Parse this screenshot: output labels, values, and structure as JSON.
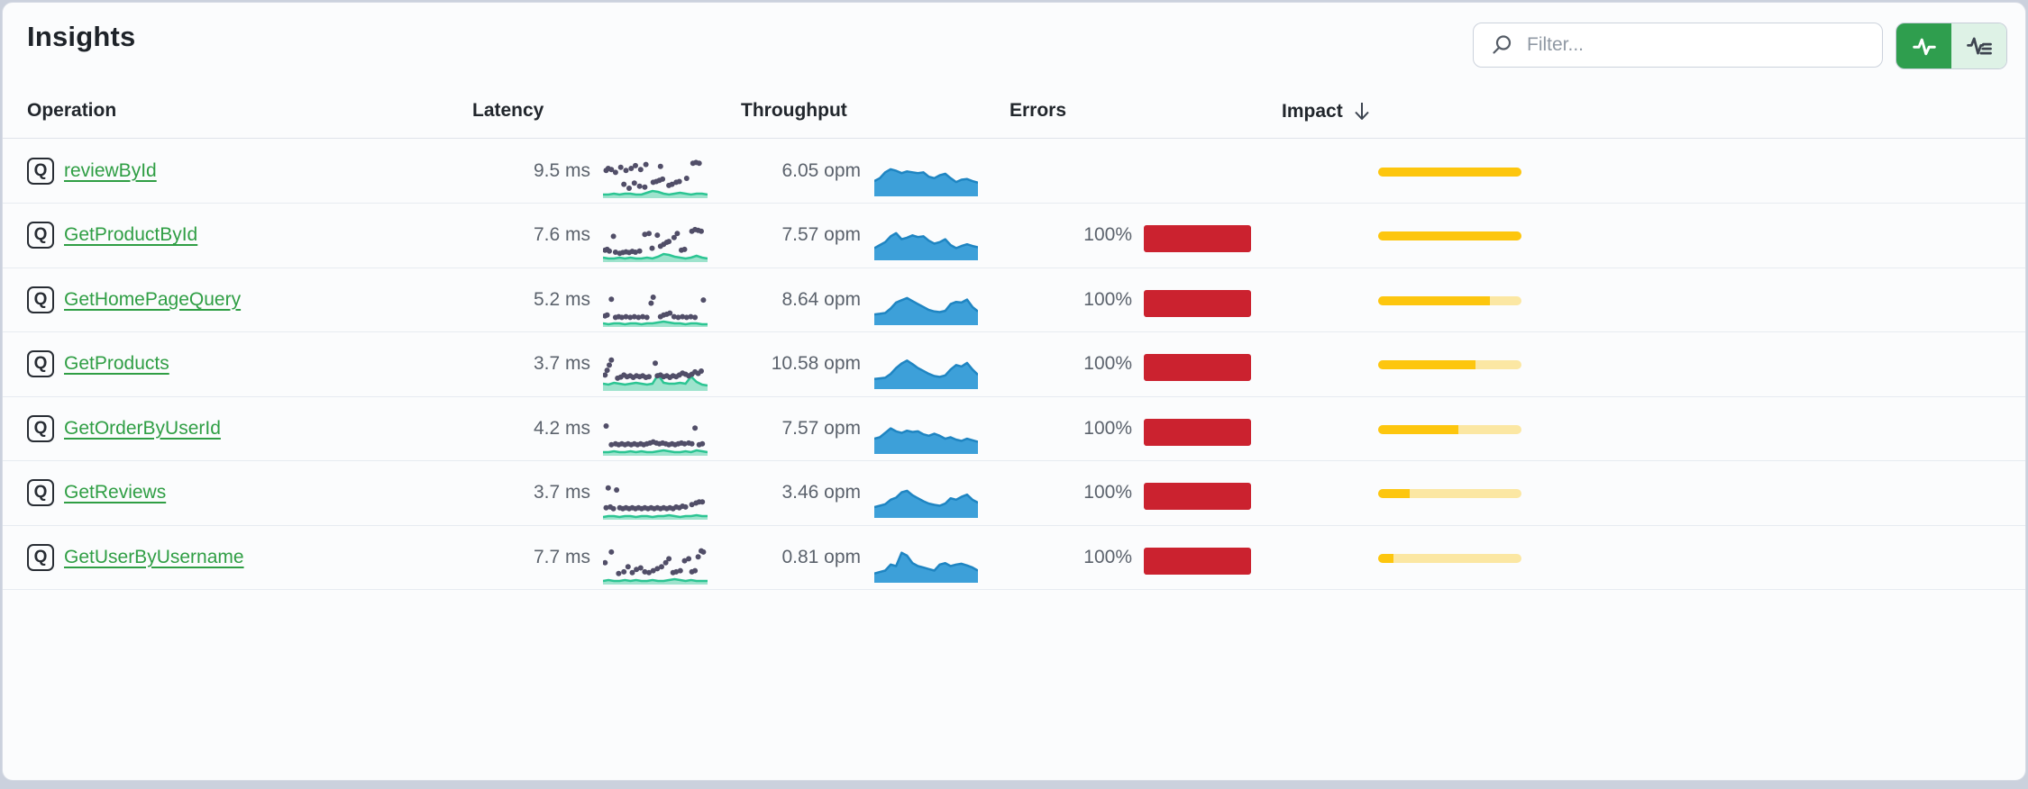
{
  "header": {
    "title": "Insights",
    "filter_placeholder": "Filter...",
    "view_modes": [
      {
        "name": "metrics-view",
        "active": true
      },
      {
        "name": "traces-view",
        "active": false
      }
    ]
  },
  "colors": {
    "accent_green": "#2f9e4e",
    "accent_green_light": "#def2e6",
    "link_green": "#2f9e44",
    "error_red": "#cb222f",
    "impact_gold": "#fdc60e",
    "impact_gold_pale": "#fbe7a3",
    "throughput_blue_fill": "#3da0d9",
    "throughput_blue_stroke": "#1f85c2",
    "latency_dot_purple": "#514e68",
    "latency_teal": "#2cc593"
  },
  "table": {
    "columns": [
      {
        "label": "Operation"
      },
      {
        "label": "Latency"
      },
      {
        "label": "Throughput"
      },
      {
        "label": "Errors"
      },
      {
        "label": "Impact",
        "sort": "desc"
      }
    ],
    "rows": [
      {
        "type_icon": "Q",
        "operation": "reviewById",
        "latency": "9.5 ms",
        "throughput": "6.05 opm",
        "errors": "",
        "has_error_bar": false,
        "impact_pct": 100,
        "latency_scatter": [
          [
            3,
            30
          ],
          [
            5,
            25
          ],
          [
            8,
            28
          ],
          [
            12,
            35
          ],
          [
            17,
            22
          ],
          [
            22,
            30
          ],
          [
            27,
            25
          ],
          [
            31,
            18
          ],
          [
            36,
            28
          ],
          [
            41,
            15
          ],
          [
            55,
            20
          ],
          [
            86,
            12
          ],
          [
            89,
            10
          ],
          [
            92,
            12
          ],
          [
            20,
            65
          ],
          [
            25,
            75
          ],
          [
            30,
            62
          ],
          [
            35,
            70
          ],
          [
            40,
            72
          ],
          [
            48,
            60
          ],
          [
            51,
            58
          ],
          [
            54,
            55
          ],
          [
            57,
            52
          ],
          [
            63,
            68
          ],
          [
            66,
            65
          ],
          [
            70,
            60
          ],
          [
            73,
            58
          ],
          [
            80,
            50
          ]
        ],
        "latency_baseline": [
          4,
          4,
          5,
          4,
          5,
          5,
          4,
          4,
          6,
          8,
          7,
          5,
          4,
          5,
          6,
          5,
          4,
          5,
          5,
          4
        ],
        "throughput_area": [
          0.45,
          0.55,
          0.75,
          0.85,
          0.8,
          0.72,
          0.78,
          0.75,
          0.72,
          0.75,
          0.6,
          0.55,
          0.65,
          0.7,
          0.55,
          0.42,
          0.5,
          0.52,
          0.45,
          0.4
        ]
      },
      {
        "type_icon": "Q",
        "operation": "GetProductById",
        "latency": "7.6 ms",
        "throughput": "7.57 opm",
        "errors": "100%",
        "has_error_bar": true,
        "impact_pct": 100,
        "latency_scatter": [
          [
            2,
            70
          ],
          [
            4,
            68
          ],
          [
            6,
            72
          ],
          [
            10,
            35
          ],
          [
            12,
            75
          ],
          [
            16,
            78
          ],
          [
            19,
            76
          ],
          [
            22,
            74
          ],
          [
            25,
            76
          ],
          [
            28,
            73
          ],
          [
            31,
            75
          ],
          [
            35,
            72
          ],
          [
            40,
            30
          ],
          [
            44,
            28
          ],
          [
            47,
            65
          ],
          [
            52,
            32
          ],
          [
            55,
            60
          ],
          [
            58,
            55
          ],
          [
            61,
            50
          ],
          [
            63,
            48
          ],
          [
            68,
            38
          ],
          [
            71,
            28
          ],
          [
            75,
            70
          ],
          [
            78,
            68
          ],
          [
            85,
            22
          ],
          [
            88,
            18
          ],
          [
            91,
            20
          ],
          [
            94,
            22
          ]
        ],
        "latency_baseline": [
          5,
          4,
          4,
          5,
          4,
          5,
          4,
          4,
          5,
          4,
          6,
          9,
          8,
          6,
          5,
          4,
          5,
          7,
          5,
          4
        ],
        "throughput_area": [
          0.35,
          0.45,
          0.55,
          0.75,
          0.85,
          0.65,
          0.7,
          0.78,
          0.72,
          0.75,
          0.6,
          0.5,
          0.55,
          0.65,
          0.45,
          0.35,
          0.42,
          0.48,
          0.42,
          0.38
        ]
      },
      {
        "type_icon": "Q",
        "operation": "GetHomePageQuery",
        "latency": "5.2 ms",
        "throughput": "8.64 opm",
        "errors": "100%",
        "has_error_bar": true,
        "impact_pct": 78,
        "latency_scatter": [
          [
            2,
            72
          ],
          [
            4,
            70
          ],
          [
            8,
            30
          ],
          [
            12,
            76
          ],
          [
            15,
            74
          ],
          [
            18,
            76
          ],
          [
            22,
            74
          ],
          [
            26,
            76
          ],
          [
            30,
            74
          ],
          [
            34,
            76
          ],
          [
            38,
            74
          ],
          [
            42,
            76
          ],
          [
            46,
            40
          ],
          [
            48,
            25
          ],
          [
            55,
            74
          ],
          [
            58,
            70
          ],
          [
            61,
            68
          ],
          [
            64,
            65
          ],
          [
            68,
            74
          ],
          [
            72,
            76
          ],
          [
            76,
            74
          ],
          [
            80,
            76
          ],
          [
            84,
            74
          ],
          [
            88,
            76
          ],
          [
            96,
            32
          ]
        ],
        "latency_baseline": [
          4,
          3,
          4,
          4,
          3,
          4,
          4,
          3,
          4,
          4,
          5,
          6,
          5,
          4,
          4,
          3,
          4,
          4,
          3,
          3
        ],
        "throughput_area": [
          0.3,
          0.32,
          0.35,
          0.5,
          0.7,
          0.78,
          0.85,
          0.75,
          0.65,
          0.55,
          0.45,
          0.4,
          0.38,
          0.42,
          0.65,
          0.72,
          0.7,
          0.8,
          0.55,
          0.4
        ]
      },
      {
        "type_icon": "Q",
        "operation": "GetProducts",
        "latency": "3.7 ms",
        "throughput": "10.58 opm",
        "errors": "100%",
        "has_error_bar": true,
        "impact_pct": 68,
        "latency_scatter": [
          [
            2,
            60
          ],
          [
            4,
            48
          ],
          [
            6,
            35
          ],
          [
            8,
            22
          ],
          [
            14,
            68
          ],
          [
            17,
            65
          ],
          [
            20,
            60
          ],
          [
            23,
            64
          ],
          [
            26,
            62
          ],
          [
            29,
            66
          ],
          [
            32,
            62
          ],
          [
            35,
            64
          ],
          [
            38,
            62
          ],
          [
            41,
            66
          ],
          [
            44,
            64
          ],
          [
            50,
            30
          ],
          [
            52,
            62
          ],
          [
            55,
            60
          ],
          [
            58,
            64
          ],
          [
            61,
            62
          ],
          [
            64,
            66
          ],
          [
            67,
            62
          ],
          [
            70,
            64
          ],
          [
            73,
            60
          ],
          [
            76,
            55
          ],
          [
            79,
            58
          ],
          [
            82,
            62
          ],
          [
            85,
            58
          ],
          [
            88,
            52
          ],
          [
            91,
            56
          ],
          [
            94,
            50
          ]
        ],
        "latency_baseline": [
          8,
          7,
          9,
          8,
          7,
          8,
          9,
          8,
          7,
          8,
          18,
          9,
          8,
          8,
          9,
          8,
          16,
          10,
          7,
          6
        ],
        "throughput_area": [
          0.28,
          0.3,
          0.32,
          0.45,
          0.65,
          0.8,
          0.9,
          0.78,
          0.65,
          0.55,
          0.45,
          0.38,
          0.35,
          0.4,
          0.6,
          0.75,
          0.7,
          0.82,
          0.6,
          0.42
        ]
      },
      {
        "type_icon": "Q",
        "operation": "GetOrderByUserId",
        "latency": "4.2 ms",
        "throughput": "7.57 opm",
        "errors": "100%",
        "has_error_bar": true,
        "impact_pct": 56,
        "latency_scatter": [
          [
            3,
            25
          ],
          [
            8,
            72
          ],
          [
            12,
            70
          ],
          [
            15,
            72
          ],
          [
            18,
            70
          ],
          [
            21,
            72
          ],
          [
            24,
            70
          ],
          [
            27,
            72
          ],
          [
            30,
            70
          ],
          [
            33,
            72
          ],
          [
            36,
            70
          ],
          [
            39,
            72
          ],
          [
            42,
            70
          ],
          [
            45,
            68
          ],
          [
            48,
            65
          ],
          [
            51,
            68
          ],
          [
            54,
            70
          ],
          [
            57,
            68
          ],
          [
            60,
            70
          ],
          [
            63,
            72
          ],
          [
            66,
            70
          ],
          [
            69,
            72
          ],
          [
            72,
            70
          ],
          [
            75,
            68
          ],
          [
            78,
            70
          ],
          [
            82,
            68
          ],
          [
            85,
            70
          ],
          [
            88,
            30
          ],
          [
            92,
            72
          ],
          [
            95,
            70
          ]
        ],
        "latency_baseline": [
          4,
          4,
          5,
          4,
          4,
          5,
          4,
          5,
          4,
          4,
          5,
          6,
          5,
          4,
          4,
          5,
          4,
          6,
          5,
          4
        ],
        "throughput_area": [
          0.45,
          0.5,
          0.65,
          0.8,
          0.7,
          0.65,
          0.72,
          0.68,
          0.7,
          0.6,
          0.55,
          0.62,
          0.55,
          0.45,
          0.5,
          0.42,
          0.38,
          0.45,
          0.4,
          0.35
        ]
      },
      {
        "type_icon": "Q",
        "operation": "GetReviews",
        "latency": "3.7 ms",
        "throughput": "3.46 opm",
        "errors": "100%",
        "has_error_bar": true,
        "impact_pct": 22,
        "latency_scatter": [
          [
            3,
            70
          ],
          [
            5,
            20
          ],
          [
            7,
            68
          ],
          [
            10,
            72
          ],
          [
            13,
            25
          ],
          [
            16,
            70
          ],
          [
            19,
            72
          ],
          [
            22,
            70
          ],
          [
            25,
            72
          ],
          [
            28,
            70
          ],
          [
            31,
            72
          ],
          [
            34,
            70
          ],
          [
            37,
            72
          ],
          [
            40,
            70
          ],
          [
            43,
            72
          ],
          [
            46,
            70
          ],
          [
            49,
            72
          ],
          [
            52,
            70
          ],
          [
            55,
            72
          ],
          [
            58,
            70
          ],
          [
            61,
            72
          ],
          [
            64,
            70
          ],
          [
            67,
            72
          ],
          [
            70,
            68
          ],
          [
            73,
            70
          ],
          [
            76,
            66
          ],
          [
            79,
            68
          ],
          [
            85,
            62
          ],
          [
            89,
            58
          ],
          [
            92,
            55
          ],
          [
            95,
            55
          ]
        ],
        "latency_baseline": [
          3,
          4,
          4,
          3,
          4,
          4,
          3,
          4,
          4,
          3,
          4,
          4,
          5,
          4,
          3,
          4,
          4,
          5,
          4,
          4
        ],
        "throughput_area": [
          0.3,
          0.35,
          0.4,
          0.55,
          0.62,
          0.8,
          0.85,
          0.7,
          0.6,
          0.5,
          0.42,
          0.38,
          0.35,
          0.42,
          0.6,
          0.55,
          0.65,
          0.72,
          0.55,
          0.45
        ]
      },
      {
        "type_icon": "Q",
        "operation": "GetUserByUsername",
        "latency": "7.7 ms",
        "throughput": "0.81 opm",
        "errors": "100%",
        "has_error_bar": true,
        "impact_pct": 11,
        "latency_scatter": [
          [
            2,
            45
          ],
          [
            8,
            18
          ],
          [
            15,
            72
          ],
          [
            20,
            68
          ],
          [
            24,
            55
          ],
          [
            28,
            70
          ],
          [
            32,
            62
          ],
          [
            36,
            58
          ],
          [
            40,
            68
          ],
          [
            44,
            70
          ],
          [
            48,
            65
          ],
          [
            52,
            60
          ],
          [
            56,
            55
          ],
          [
            60,
            45
          ],
          [
            63,
            35
          ],
          [
            67,
            70
          ],
          [
            70,
            68
          ],
          [
            74,
            65
          ],
          [
            78,
            40
          ],
          [
            82,
            35
          ],
          [
            85,
            68
          ],
          [
            88,
            65
          ],
          [
            91,
            30
          ],
          [
            94,
            15
          ],
          [
            96,
            18
          ]
        ],
        "latency_baseline": [
          4,
          5,
          4,
          4,
          5,
          4,
          5,
          4,
          4,
          5,
          4,
          4,
          5,
          6,
          5,
          4,
          5,
          4,
          4,
          4
        ],
        "throughput_area": [
          0.25,
          0.3,
          0.35,
          0.55,
          0.5,
          0.95,
          0.85,
          0.6,
          0.5,
          0.45,
          0.4,
          0.35,
          0.55,
          0.6,
          0.5,
          0.55,
          0.58,
          0.52,
          0.45,
          0.35
        ]
      }
    ]
  }
}
